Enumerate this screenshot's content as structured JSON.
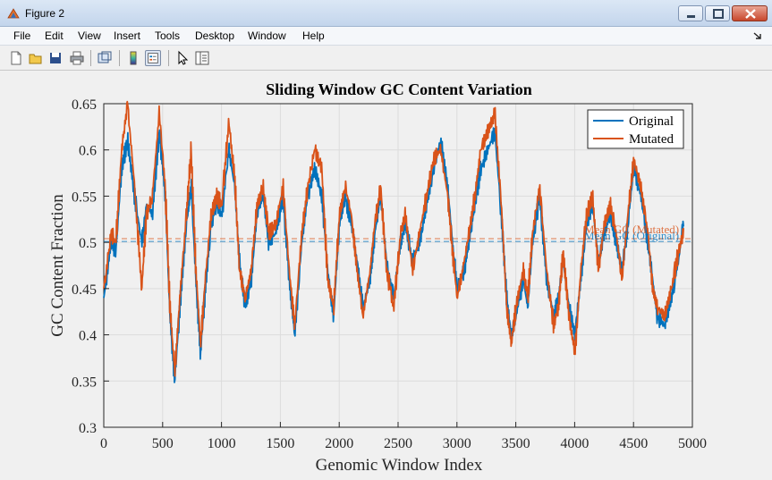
{
  "window": {
    "title": "Figure 2",
    "icon": "matlab-icon"
  },
  "menu": [
    "File",
    "Edit",
    "View",
    "Insert",
    "Tools",
    "Desktop",
    "Window",
    "Help"
  ],
  "menu_arrow_icon": "dock-arrow-icon",
  "toolbar": [
    "new-figure-icon",
    "open-file-icon",
    "save-icon",
    "print-icon",
    "link-plot-icon",
    "colorbar-icon",
    "legend-icon",
    "pointer-icon",
    "property-editor-icon"
  ],
  "colors": {
    "original": "#0072BD",
    "mutated": "#D95319",
    "window_title_bg": "#c3d5ec"
  },
  "chart_data": {
    "type": "line",
    "title": "Sliding Window GC Content Variation",
    "xlabel": "Genomic Window Index",
    "ylabel": "GC Content Fraction",
    "xlim": [
      0,
      5000
    ],
    "ylim": [
      0.3,
      0.65
    ],
    "xticks": [
      0,
      500,
      1000,
      1500,
      2000,
      2500,
      3000,
      3500,
      4000,
      4500,
      5000
    ],
    "yticks": [
      0.3,
      0.35,
      0.4,
      0.45,
      0.5,
      0.55,
      0.6,
      0.65
    ],
    "xtick_labels": [
      "0",
      "500",
      "1000",
      "1500",
      "2000",
      "2500",
      "3000",
      "3500",
      "4000",
      "4500",
      "5000"
    ],
    "ytick_labels": [
      "0.3",
      "0.35",
      "0.4",
      "0.45",
      "0.5",
      "0.55",
      "0.6",
      "0.65"
    ],
    "grid": true,
    "legend": {
      "position": "top-right",
      "entries": [
        "Original",
        "Mutated"
      ]
    },
    "series": [
      {
        "name": "Original",
        "color": "#0072BD",
        "x": [
          0,
          60,
          100,
          150,
          200,
          260,
          320,
          360,
          410,
          470,
          520,
          560,
          600,
          650,
          700,
          740,
          780,
          820,
          860,
          910,
          960,
          1000,
          1060,
          1110,
          1150,
          1200,
          1250,
          1300,
          1350,
          1400,
          1460,
          1520,
          1580,
          1620,
          1680,
          1730,
          1790,
          1850,
          1900,
          1950,
          2000,
          2050,
          2100,
          2150,
          2200,
          2260,
          2300,
          2350,
          2400,
          2460,
          2520,
          2560,
          2620,
          2680,
          2740,
          2800,
          2860,
          2920,
          2960,
          3000,
          3060,
          3100,
          3150,
          3200,
          3260,
          3320,
          3380,
          3420,
          3460,
          3500,
          3560,
          3600,
          3640,
          3700,
          3760,
          3820,
          3860,
          3900,
          3950,
          4000,
          4050,
          4100,
          4150,
          4200,
          4250,
          4300,
          4350,
          4400,
          4450,
          4500,
          4560,
          4620,
          4660,
          4700,
          4760,
          4820,
          4880,
          4920
        ],
        "y": [
          0.44,
          0.5,
          0.49,
          0.58,
          0.61,
          0.55,
          0.5,
          0.54,
          0.53,
          0.62,
          0.55,
          0.42,
          0.35,
          0.44,
          0.52,
          0.56,
          0.46,
          0.38,
          0.45,
          0.52,
          0.54,
          0.53,
          0.6,
          0.56,
          0.48,
          0.43,
          0.46,
          0.53,
          0.55,
          0.5,
          0.51,
          0.55,
          0.45,
          0.4,
          0.5,
          0.55,
          0.58,
          0.55,
          0.47,
          0.42,
          0.52,
          0.55,
          0.52,
          0.48,
          0.43,
          0.46,
          0.51,
          0.55,
          0.48,
          0.44,
          0.5,
          0.52,
          0.48,
          0.5,
          0.54,
          0.58,
          0.61,
          0.56,
          0.5,
          0.45,
          0.47,
          0.5,
          0.54,
          0.58,
          0.6,
          0.62,
          0.52,
          0.44,
          0.4,
          0.42,
          0.46,
          0.43,
          0.5,
          0.55,
          0.46,
          0.42,
          0.44,
          0.48,
          0.43,
          0.4,
          0.46,
          0.52,
          0.54,
          0.48,
          0.51,
          0.53,
          0.5,
          0.47,
          0.52,
          0.58,
          0.55,
          0.5,
          0.46,
          0.42,
          0.41,
          0.44,
          0.48,
          0.52
        ]
      },
      {
        "name": "Mutated",
        "color": "#D95319",
        "x": [
          0,
          60,
          100,
          150,
          200,
          260,
          320,
          360,
          410,
          470,
          520,
          560,
          600,
          650,
          700,
          740,
          780,
          820,
          860,
          910,
          960,
          1000,
          1060,
          1110,
          1150,
          1200,
          1250,
          1300,
          1350,
          1400,
          1460,
          1520,
          1580,
          1620,
          1680,
          1730,
          1790,
          1850,
          1900,
          1950,
          2000,
          2050,
          2100,
          2150,
          2200,
          2260,
          2300,
          2350,
          2400,
          2460,
          2520,
          2560,
          2620,
          2680,
          2740,
          2800,
          2860,
          2920,
          2960,
          3000,
          3060,
          3100,
          3150,
          3200,
          3260,
          3320,
          3380,
          3420,
          3460,
          3500,
          3560,
          3600,
          3640,
          3700,
          3760,
          3820,
          3860,
          3900,
          3950,
          4000,
          4050,
          4100,
          4150,
          4200,
          4250,
          4300,
          4350,
          4400,
          4450,
          4500,
          4560,
          4620,
          4660,
          4700,
          4760,
          4820,
          4880,
          4920
        ],
        "y": [
          0.45,
          0.51,
          0.5,
          0.6,
          0.65,
          0.56,
          0.45,
          0.53,
          0.55,
          0.64,
          0.56,
          0.43,
          0.36,
          0.45,
          0.53,
          0.6,
          0.47,
          0.39,
          0.46,
          0.53,
          0.55,
          0.54,
          0.63,
          0.57,
          0.47,
          0.44,
          0.47,
          0.54,
          0.56,
          0.51,
          0.52,
          0.56,
          0.46,
          0.41,
          0.51,
          0.56,
          0.6,
          0.58,
          0.46,
          0.43,
          0.53,
          0.56,
          0.53,
          0.47,
          0.42,
          0.47,
          0.52,
          0.56,
          0.47,
          0.43,
          0.51,
          0.53,
          0.47,
          0.51,
          0.55,
          0.59,
          0.6,
          0.55,
          0.49,
          0.44,
          0.48,
          0.51,
          0.55,
          0.6,
          0.62,
          0.64,
          0.53,
          0.43,
          0.39,
          0.43,
          0.47,
          0.44,
          0.51,
          0.56,
          0.47,
          0.41,
          0.43,
          0.49,
          0.42,
          0.38,
          0.47,
          0.53,
          0.55,
          0.47,
          0.52,
          0.54,
          0.51,
          0.46,
          0.53,
          0.59,
          0.56,
          0.51,
          0.45,
          0.43,
          0.42,
          0.45,
          0.49,
          0.51
        ]
      }
    ],
    "reference_lines": [
      {
        "label": "Mean GC (Original)",
        "y": 0.501,
        "color": "#0072BD",
        "style": "dashed"
      },
      {
        "label": "Mean GC (Mutated)",
        "y": 0.504,
        "color": "#D95319",
        "style": "dashed"
      }
    ]
  }
}
